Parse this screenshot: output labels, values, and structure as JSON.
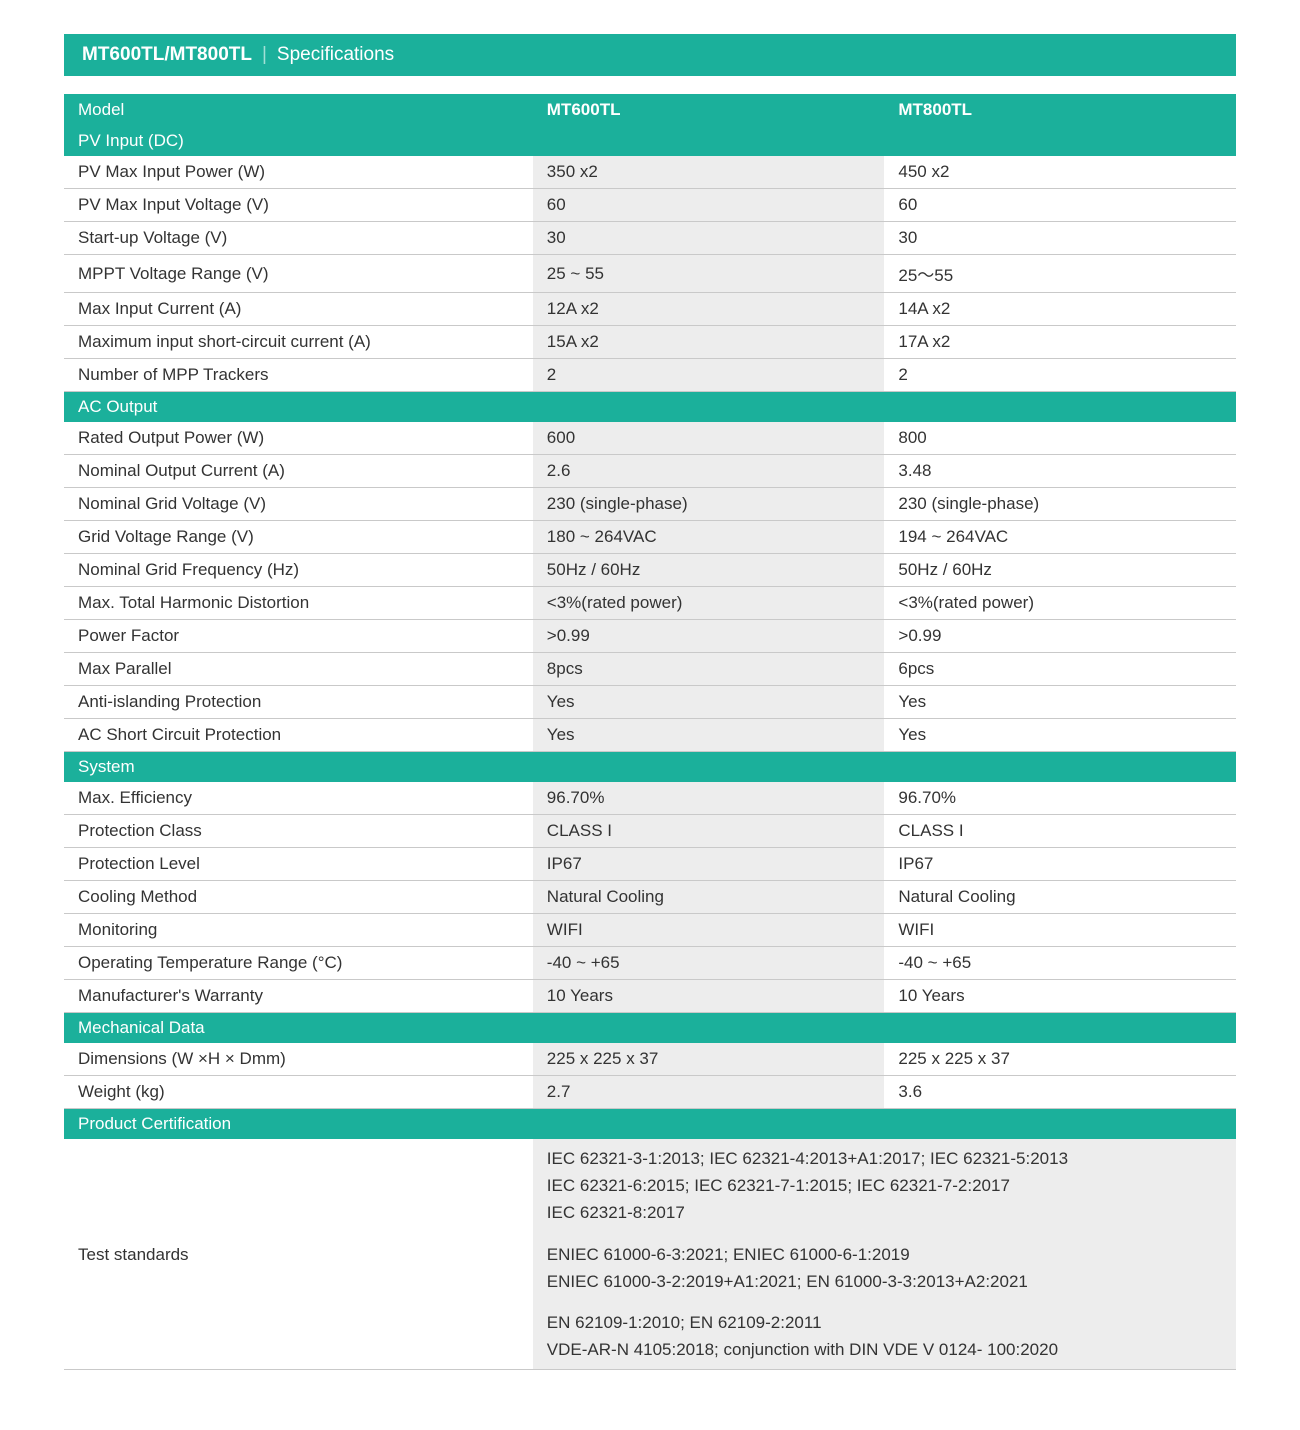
{
  "title": {
    "models": "MT600TL/MT800TL",
    "spec": "Specifications"
  },
  "header": {
    "label": "Model",
    "m1": "MT600TL",
    "m2": "MT800TL"
  },
  "sections": [
    {
      "name": "PV Input (DC)",
      "rows": [
        {
          "label": "PV Max Input Power (W)",
          "m1": "350 x2",
          "m2": "450  x2"
        },
        {
          "label": "PV Max Input Voltage (V)",
          "m1": "60",
          "m2": "60"
        },
        {
          "label": "Start-up Voltage (V)",
          "m1": "30",
          "m2": "30"
        },
        {
          "label": "MPPT Voltage Range (V)",
          "m1": "25 ~ 55",
          "m2": "25～55"
        },
        {
          "label": "Max Input Current (A)",
          "m1": "12A x2",
          "m2": "14A x2"
        },
        {
          "label": "Maximum input short-circuit current (A)",
          "m1": "15A x2",
          "m2": "17A x2"
        },
        {
          "label": "Number of MPP Trackers",
          "m1": "2",
          "m2": "2"
        }
      ]
    },
    {
      "name": "AC Output",
      "rows": [
        {
          "label": "Rated Output Power (W)",
          "m1": "600",
          "m2": "800"
        },
        {
          "label": "Nominal Output Current (A)",
          "m1": "2.6",
          "m2": "3.48"
        },
        {
          "label": "Nominal Grid Voltage (V)",
          "m1": "230 (single-phase)",
          "m2": "230 (single-phase)"
        },
        {
          "label": "Grid Voltage Range (V)",
          "m1": "180 ~ 264VAC",
          "m2": "194 ~ 264VAC"
        },
        {
          "label": "Nominal Grid Frequency (Hz)",
          "m1": "50Hz / 60Hz",
          "m2": "50Hz / 60Hz"
        },
        {
          "label": "Max. Total Harmonic Distortion",
          "m1": "<3%(rated power)",
          "m2": "<3%(rated power)"
        },
        {
          "label": "Power Factor",
          "m1": ">0.99",
          "m2": ">0.99"
        },
        {
          "label": "Max Parallel",
          "m1": "8pcs",
          "m2": "6pcs"
        },
        {
          "label": "Anti-islanding Protection",
          "m1": "Yes",
          "m2": "Yes"
        },
        {
          "label": "AC Short Circuit Protection",
          "m1": "Yes",
          "m2": "Yes"
        }
      ]
    },
    {
      "name": "System",
      "rows": [
        {
          "label": "Max. Efficiency",
          "m1": "96.70%",
          "m2": "96.70%"
        },
        {
          "label": "Protection Class",
          "m1": "CLASS I",
          "m2": "CLASS I"
        },
        {
          "label": "Protection Level",
          "m1": "IP67",
          "m2": "IP67"
        },
        {
          "label": "Cooling Method",
          "m1": "Natural Cooling",
          "m2": "Natural Cooling"
        },
        {
          "label": "Monitoring",
          "m1": "WIFI",
          "m2": "WIFI"
        },
        {
          "label": "Operating Temperature Range (°C)",
          "m1": "-40 ~ +65",
          "m2": "-40 ~ +65"
        },
        {
          "label": "Manufacturer's Warranty",
          "m1": "10 Years",
          "m2": "10 Years"
        }
      ]
    },
    {
      "name": "Mechanical Data",
      "rows": [
        {
          "label": "Dimensions (W ×H × Dmm)",
          "m1": "225 x 225 x 37",
          "m2": "225 x 225 x 37"
        },
        {
          "label": "Weight (kg)",
          "m1": "2.7",
          "m2": "3.6"
        }
      ]
    }
  ],
  "cert_section_name": "Product Certification",
  "cert": {
    "label": "Test standards",
    "blocks": [
      [
        "IEC 62321-3-1:2013;  IEC 62321-4:2013+A1:2017;  IEC 62321-5:2013",
        "IEC 62321-6:2015;  IEC 62321-7-1:2015;  IEC 62321-7-2:2017",
        "IEC 62321-8:2017"
      ],
      [
        "ENIEC 61000-6-3:2021;  ENIEC 61000-6-1:2019",
        "ENIEC 61000-3-2:2019+A1:2021;  EN 61000-3-3:2013+A2:2021"
      ],
      [
        "EN 62109-1:2010;  EN 62109-2:2011",
        "VDE-AR-N 4105:2018;  conjunction with DIN VDE V 0124- 100:2020"
      ]
    ]
  },
  "colors": {
    "accent": "#1bb09b",
    "alt_bg": "#ededed",
    "border": "#c9c9c9"
  }
}
